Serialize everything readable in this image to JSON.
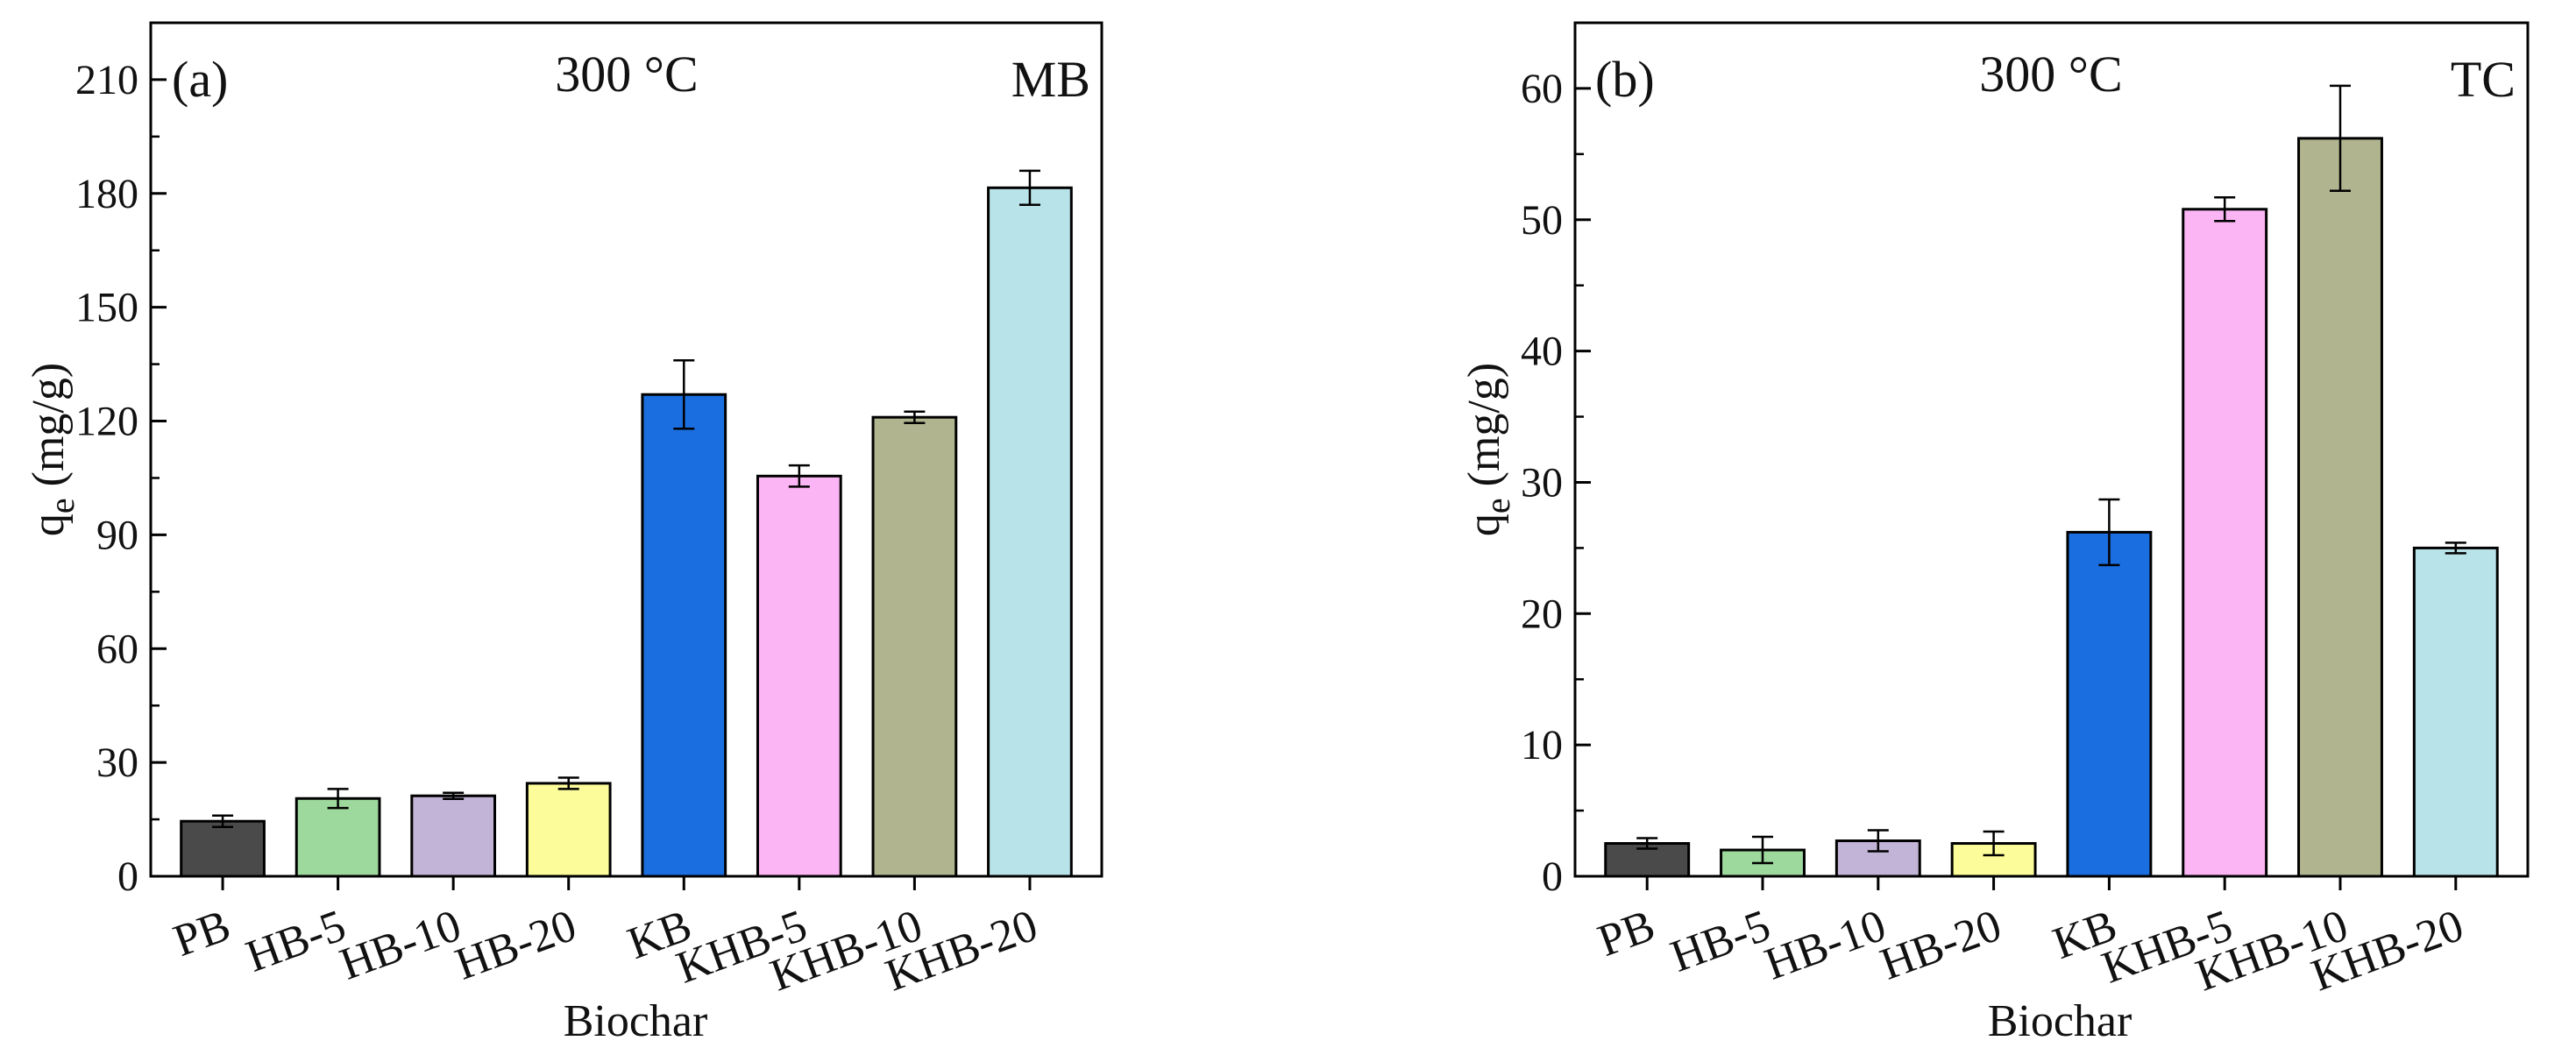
{
  "chart_data": [
    {
      "type": "bar",
      "panel_label": "(a)",
      "title": "300 °C",
      "annotation": "MB",
      "xlabel": "Biochar",
      "ylabel_main": "q",
      "ylabel_sub": "e",
      "ylabel_unit": " (mg/g)",
      "categories": [
        "PB",
        "HB-5",
        "HB-10",
        "HB-20",
        "KB",
        "KHB-5",
        "KHB-10",
        "KHB-20"
      ],
      "values": [
        14.5,
        20.5,
        21.2,
        24.5,
        127.0,
        105.5,
        121.0,
        181.5
      ],
      "errors": [
        1.5,
        2.5,
        0.8,
        1.5,
        9.0,
        2.8,
        1.5,
        4.5
      ],
      "colors": [
        "#4a4a4a",
        "#9dd89c",
        "#c2b4d6",
        "#fdfc9b",
        "#1a6ee0",
        "#fcb5f4",
        "#b1b58f",
        "#b8e3e9"
      ],
      "ylim": [
        0,
        225
      ],
      "yticks": [
        0,
        30,
        60,
        90,
        120,
        150,
        180,
        210
      ],
      "yticklabels": [
        "0",
        "30",
        "60",
        "90",
        "120",
        "150",
        "180",
        "210"
      ],
      "minor_step": 15
    },
    {
      "type": "bar",
      "panel_label": "(b)",
      "title": "300 °C",
      "annotation": "TC",
      "xlabel": "Biochar",
      "ylabel_main": "q",
      "ylabel_sub": "e",
      "ylabel_unit": " (mg/g)",
      "categories": [
        "PB",
        "HB-5",
        "HB-10",
        "HB-20",
        "KB",
        "KHB-5",
        "KHB-10",
        "KHB-20"
      ],
      "values": [
        2.5,
        2.0,
        2.7,
        2.5,
        26.2,
        50.8,
        56.2,
        25.0
      ],
      "errors": [
        0.4,
        1.0,
        0.8,
        0.9,
        2.5,
        0.9,
        4.0,
        0.4
      ],
      "colors": [
        "#4a4a4a",
        "#9dd89c",
        "#c2b4d6",
        "#fdfc9b",
        "#1a6ee0",
        "#fcb5f4",
        "#b1b58f",
        "#b8e3e9"
      ],
      "ylim": [
        0,
        65
      ],
      "yticks": [
        0,
        10,
        20,
        30,
        40,
        50,
        60
      ],
      "yticklabels": [
        "0",
        "10",
        "20",
        "30",
        "40",
        "50",
        "60"
      ],
      "minor_step": 5
    }
  ]
}
